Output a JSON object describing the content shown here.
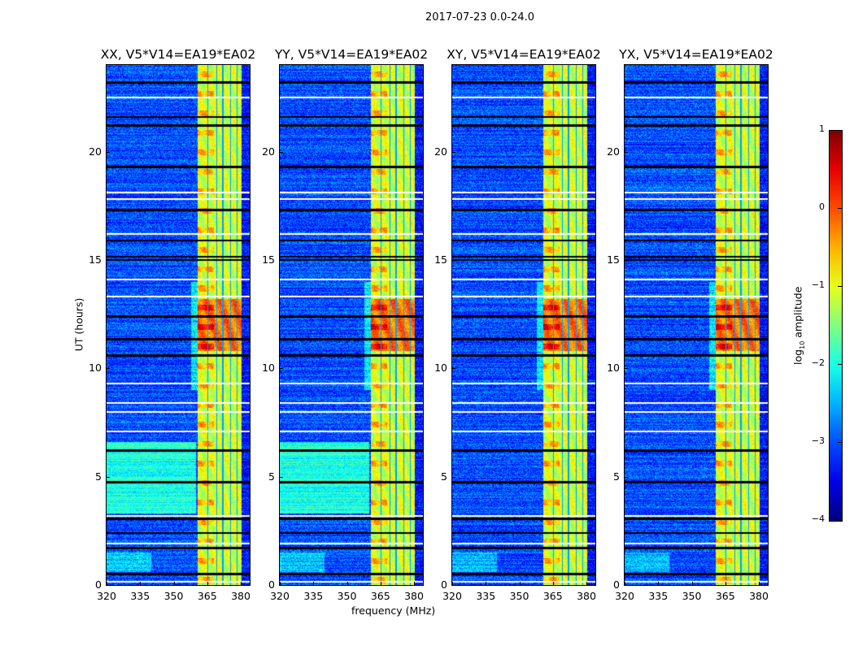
{
  "chart_data": {
    "type": "heatmap",
    "suptitle": "2017-07-23 0.0-24.0",
    "xlabel": "frequency (MHz)",
    "ylabel": "UT (hours)",
    "xlim": [
      320,
      384
    ],
    "ylim": [
      0,
      24
    ],
    "xticks": [
      320,
      335,
      350,
      365,
      380
    ],
    "yticks": [
      0,
      5,
      10,
      15,
      20
    ],
    "panels": [
      {
        "title": "XX, V5*V14=EA19*EA02",
        "low_freq_enhanced_hours": [
          3.3,
          6.6
        ]
      },
      {
        "title": "YY, V5*V14=EA19*EA02",
        "low_freq_enhanced_hours": [
          3.3,
          6.6
        ]
      },
      {
        "title": "XY, V5*V14=EA19*EA02",
        "low_freq_enhanced_hours": null
      },
      {
        "title": "YX, V5*V14=EA19*EA02",
        "low_freq_enhanced_hours": null
      }
    ],
    "rfi_band_mhz": [
      360.7,
      380.4
    ],
    "rfi_channel_gaps_mhz": [
      365.2,
      369.3,
      372.0,
      375.5,
      378.3
    ],
    "rfi_peak_hours": [
      10.8,
      13.2
    ],
    "flagged_hours_black": [
      0.5,
      1.7,
      2.4,
      3.05,
      4.75,
      6.2,
      10.6,
      11.35,
      12.4,
      15.0,
      15.15,
      15.9,
      17.3,
      19.3,
      21.2,
      21.6,
      23.2
    ],
    "gap_hours_white": [
      0.15,
      1.9,
      3.2,
      7.1,
      8.0,
      8.4,
      9.3,
      13.3,
      14.1,
      16.2,
      17.8,
      18.1,
      22.5
    ],
    "colorbar": {
      "label": "log10 amplitude",
      "range": [
        -4,
        1
      ],
      "ticks": [
        1,
        0,
        -1,
        -2,
        -3,
        -4
      ],
      "tick_labels": [
        "1",
        "0",
        "−1",
        "−2",
        "−3",
        "−4"
      ],
      "colormap": "jet"
    }
  }
}
